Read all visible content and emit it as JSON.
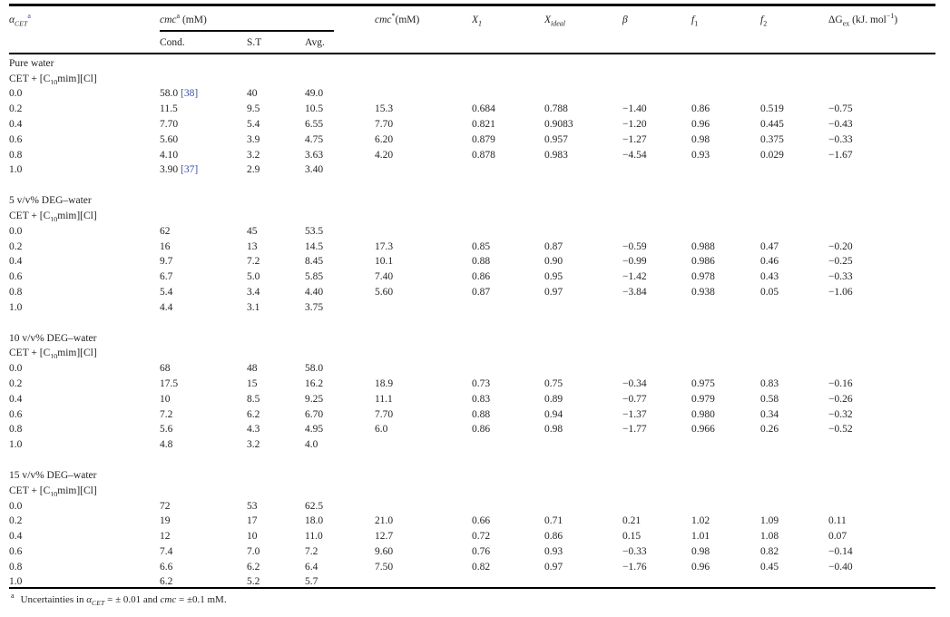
{
  "page": {
    "background": "#ffffff",
    "text_color": "#242424",
    "rule_color": "#000000",
    "link_color": "#3b4da1"
  },
  "table": {
    "header": {
      "alpha_main": "α",
      "alpha_sub": "CET",
      "alpha_sup": "a",
      "cmc_main": "cmc",
      "cmc_sup": "a",
      "cmc_unit": " (mM)",
      "sub_cond": "Cond.",
      "sub_st": "S.T",
      "sub_avg": "Avg.",
      "cmcstar_main": "cmc",
      "cmcstar_sup": "*",
      "cmcstar_unit": "(mM)",
      "x1_main": "X",
      "x1_sub": "1",
      "xideal_main": "X",
      "xideal_sub": "ideal",
      "beta": "β",
      "f1_main": "f",
      "f1_sub": "1",
      "f2_main": "f",
      "f2_sub": "2",
      "dg_main": "ΔG",
      "dg_sub": "ex",
      "dg_unit_pre": " (kJ. mol",
      "dg_sup": "−1",
      "dg_unit_post": ")"
    },
    "system_line": {
      "pre": "CET + [C",
      "sub": "10",
      "post": "mim][Cl]"
    },
    "sections": [
      {
        "solvent": "Pure water",
        "rows": [
          {
            "alpha": "0.0",
            "cond": "58.0",
            "ref": "[38]",
            "st": "40",
            "avg": "49.0",
            "cmcs": "",
            "x1": "",
            "xi": "",
            "beta": "",
            "f1": "",
            "f2": "",
            "dg": ""
          },
          {
            "alpha": "0.2",
            "cond": "11.5",
            "ref": "",
            "st": "9.5",
            "avg": "10.5",
            "cmcs": "15.3",
            "x1": "0.684",
            "xi": "0.788",
            "beta": "−1.40",
            "f1": "0.86",
            "f2": "0.519",
            "dg": "−0.75"
          },
          {
            "alpha": "0.4",
            "cond": "7.70",
            "ref": "",
            "st": "5.4",
            "avg": "6.55",
            "cmcs": "7.70",
            "x1": "0.821",
            "xi": "0.9083",
            "beta": "−1.20",
            "f1": "0.96",
            "f2": "0.445",
            "dg": "−0.43"
          },
          {
            "alpha": "0.6",
            "cond": "5.60",
            "ref": "",
            "st": "3.9",
            "avg": "4.75",
            "cmcs": "6.20",
            "x1": "0.879",
            "xi": "0.957",
            "beta": "−1.27",
            "f1": "0.98",
            "f2": "0.375",
            "dg": "−0.33"
          },
          {
            "alpha": "0.8",
            "cond": "4.10",
            "ref": "",
            "st": "3.2",
            "avg": "3.63",
            "cmcs": "4.20",
            "x1": "0.878",
            "xi": "0.983",
            "beta": "−4.54",
            "f1": "0.93",
            "f2": "0.029",
            "dg": "−1.67"
          },
          {
            "alpha": "1.0",
            "cond": "3.90",
            "ref": "[37]",
            "st": "2.9",
            "avg": "3.40",
            "cmcs": "",
            "x1": "",
            "xi": "",
            "beta": "",
            "f1": "",
            "f2": "",
            "dg": ""
          }
        ]
      },
      {
        "solvent": "5 v/v% DEG–water",
        "rows": [
          {
            "alpha": "0.0",
            "cond": "62",
            "ref": "",
            "st": "45",
            "avg": "53.5",
            "cmcs": "",
            "x1": "",
            "xi": "",
            "beta": "",
            "f1": "",
            "f2": "",
            "dg": ""
          },
          {
            "alpha": "0.2",
            "cond": "16",
            "ref": "",
            "st": "13",
            "avg": "14.5",
            "cmcs": "17.3",
            "x1": "0.85",
            "xi": "0.87",
            "beta": "−0.59",
            "f1": "0.988",
            "f2": "0.47",
            "dg": "−0.20"
          },
          {
            "alpha": "0.4",
            "cond": "9.7",
            "ref": "",
            "st": "7.2",
            "avg": "8.45",
            "cmcs": "10.1",
            "x1": "0.88",
            "xi": "0.90",
            "beta": "−0.99",
            "f1": "0.986",
            "f2": "0.46",
            "dg": "−0.25"
          },
          {
            "alpha": "0.6",
            "cond": "6.7",
            "ref": "",
            "st": "5.0",
            "avg": "5.85",
            "cmcs": "7.40",
            "x1": "0.86",
            "xi": "0.95",
            "beta": "−1.42",
            "f1": "0.978",
            "f2": "0.43",
            "dg": "−0.33"
          },
          {
            "alpha": "0.8",
            "cond": "5.4",
            "ref": "",
            "st": "3.4",
            "avg": "4.40",
            "cmcs": "5.60",
            "x1": "0.87",
            "xi": "0.97",
            "beta": "−3.84",
            "f1": "0.938",
            "f2": "0.05",
            "dg": "−1.06"
          },
          {
            "alpha": "1.0",
            "cond": "4.4",
            "ref": "",
            "st": "3.1",
            "avg": "3.75",
            "cmcs": "",
            "x1": "",
            "xi": "",
            "beta": "",
            "f1": "",
            "f2": "",
            "dg": ""
          }
        ]
      },
      {
        "solvent": "10 v/v% DEG–water",
        "rows": [
          {
            "alpha": "0.0",
            "cond": "68",
            "ref": "",
            "st": "48",
            "avg": "58.0",
            "cmcs": "",
            "x1": "",
            "xi": "",
            "beta": "",
            "f1": "",
            "f2": "",
            "dg": ""
          },
          {
            "alpha": "0.2",
            "cond": "17.5",
            "ref": "",
            "st": "15",
            "avg": "16.2",
            "cmcs": "18.9",
            "x1": "0.73",
            "xi": "0.75",
            "beta": "−0.34",
            "f1": "0.975",
            "f2": "0.83",
            "dg": "−0.16"
          },
          {
            "alpha": "0.4",
            "cond": "10",
            "ref": "",
            "st": "8.5",
            "avg": "9.25",
            "cmcs": "11.1",
            "x1": "0.83",
            "xi": "0.89",
            "beta": "−0.77",
            "f1": "0.979",
            "f2": "0.58",
            "dg": "−0.26"
          },
          {
            "alpha": "0.6",
            "cond": "7.2",
            "ref": "",
            "st": "6.2",
            "avg": "6.70",
            "cmcs": "7.70",
            "x1": "0.88",
            "xi": "0.94",
            "beta": "−1.37",
            "f1": "0.980",
            "f2": "0.34",
            "dg": "−0.32"
          },
          {
            "alpha": "0.8",
            "cond": "5.6",
            "ref": "",
            "st": "4.3",
            "avg": "4.95",
            "cmcs": "6.0",
            "x1": "0.86",
            "xi": "0.98",
            "beta": "−1.77",
            "f1": "0.966",
            "f2": "0.26",
            "dg": "−0.52"
          },
          {
            "alpha": "1.0",
            "cond": "4.8",
            "ref": "",
            "st": "3.2",
            "avg": "4.0",
            "cmcs": "",
            "x1": "",
            "xi": "",
            "beta": "",
            "f1": "",
            "f2": "",
            "dg": ""
          }
        ]
      },
      {
        "solvent": "15 v/v% DEG–water",
        "rows": [
          {
            "alpha": "0.0",
            "cond": "72",
            "ref": "",
            "st": "53",
            "avg": "62.5",
            "cmcs": "",
            "x1": "",
            "xi": "",
            "beta": "",
            "f1": "",
            "f2": "",
            "dg": ""
          },
          {
            "alpha": "0.2",
            "cond": "19",
            "ref": "",
            "st": "17",
            "avg": "18.0",
            "cmcs": "21.0",
            "x1": "0.66",
            "xi": "0.71",
            "beta": "0.21",
            "f1": "1.02",
            "f2": "1.09",
            "dg": "0.11"
          },
          {
            "alpha": "0.4",
            "cond": "12",
            "ref": "",
            "st": "10",
            "avg": "11.0",
            "cmcs": "12.7",
            "x1": "0.72",
            "xi": "0.86",
            "beta": "0.15",
            "f1": "1.01",
            "f2": "1.08",
            "dg": "0.07"
          },
          {
            "alpha": "0.6",
            "cond": "7.4",
            "ref": "",
            "st": "7.0",
            "avg": "7.2",
            "cmcs": "9.60",
            "x1": "0.76",
            "xi": "0.93",
            "beta": "−0.33",
            "f1": "0.98",
            "f2": "0.82",
            "dg": "−0.14"
          },
          {
            "alpha": "0.8",
            "cond": "6.6",
            "ref": "",
            "st": "6.2",
            "avg": "6.4",
            "cmcs": "7.50",
            "x1": "0.82",
            "xi": "0.97",
            "beta": "−1.76",
            "f1": "0.96",
            "f2": "0.45",
            "dg": "−0.40"
          },
          {
            "alpha": "1.0",
            "cond": "6.2",
            "ref": "",
            "st": "5.2",
            "avg": "5.7",
            "cmcs": "",
            "x1": "",
            "xi": "",
            "beta": "",
            "f1": "",
            "f2": "",
            "dg": ""
          }
        ]
      }
    ]
  },
  "footnote": {
    "marker": "a",
    "pre": "Uncertainties in ",
    "alpha": "α",
    "alpha_sub": "CET",
    "mid": " = ± 0.01 and ",
    "cmc": "cmc",
    "post": " = ±0.1 mM."
  }
}
